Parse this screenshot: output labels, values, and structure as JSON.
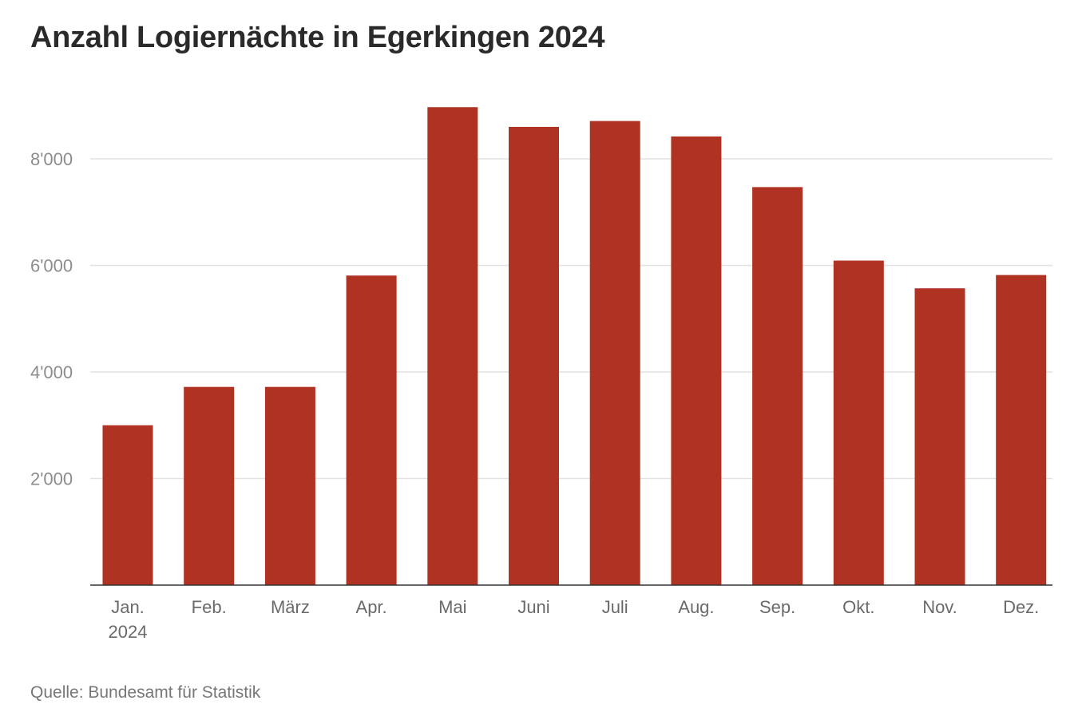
{
  "title": "Anzahl Logiernächte in Egerkingen 2024",
  "source": "Quelle: Bundesamt für Statistik",
  "colors": {
    "bar": "#af3222",
    "grid": "#e2e2e2",
    "axis": "#333333",
    "tick_text": "#8c8c8c",
    "category_text": "#6a6a6a"
  },
  "chart_data": {
    "type": "bar",
    "title": "Anzahl Logiernächte in Egerkingen 2024",
    "xlabel": "",
    "ylabel": "",
    "categories": [
      "Jan.",
      "Feb.",
      "März",
      "Apr.",
      "Mai",
      "Juni",
      "Juli",
      "Aug.",
      "Sep.",
      "Okt.",
      "Nov.",
      "Dez."
    ],
    "category_sublabels": [
      "2024",
      "",
      "",
      "",
      "",
      "",
      "",
      "",
      "",
      "",
      "",
      ""
    ],
    "values": [
      3000,
      3720,
      3720,
      5810,
      8970,
      8600,
      8710,
      8420,
      7470,
      6090,
      5570,
      5820
    ],
    "ylim": [
      0,
      9000
    ],
    "yticks": [
      2000,
      4000,
      6000,
      8000
    ],
    "ytick_labels": [
      "2'000",
      "4'000",
      "6'000",
      "8'000"
    ],
    "grid": true,
    "legend": "none"
  }
}
